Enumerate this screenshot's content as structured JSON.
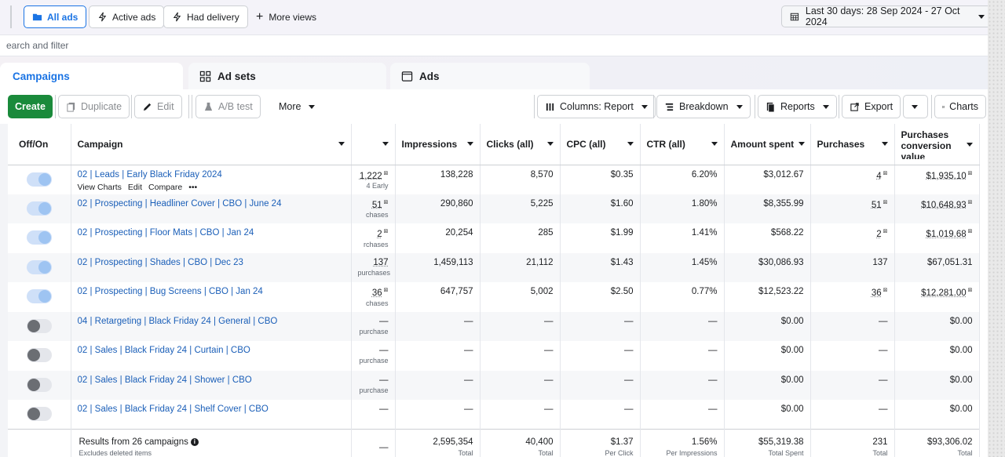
{
  "views": {
    "all_ads": "All ads",
    "active_ads": "Active ads",
    "had_delivery": "Had delivery",
    "more_views": "More views",
    "date_range": "Last 30 days: 28 Sep 2024 - 27 Oct 2024"
  },
  "search": {
    "placeholder": "earch and filter"
  },
  "tabs": [
    {
      "label": "Campaigns"
    },
    {
      "label": "Ad sets"
    },
    {
      "label": "Ads"
    }
  ],
  "toolbar": {
    "create": "Create",
    "duplicate": "Duplicate",
    "edit": "Edit",
    "ab_test": "A/B test",
    "more": "More",
    "columns": "Columns: Report",
    "breakdown": "Breakdown",
    "reports": "Reports",
    "export": "Export",
    "charts": "Charts"
  },
  "table": {
    "headers": {
      "off_on": "Off/On",
      "campaign": "Campaign",
      "impressions": "Impressions",
      "clicks": "Clicks (all)",
      "cpc": "CPC (all)",
      "ctr": "CTR (all)",
      "amount_spent": "Amount spent",
      "purchases": "Purchases",
      "pcv": "Purchases conversion value"
    },
    "row_actions": {
      "view_charts": "View Charts",
      "edit": "Edit",
      "compare": "Compare",
      "more": "•••"
    },
    "rows": [
      {
        "on": true,
        "campaign": "02 | Leads | Early Black Friday 2024",
        "results": "1,222",
        "results_sub": "4 Early",
        "impressions": "138,228",
        "clicks": "8,570",
        "cpc": "$0.35",
        "ctr": "6.20%",
        "spent": "$3,012.67",
        "purchases": "4",
        "pcv": "$1,935.10"
      },
      {
        "on": true,
        "campaign": "02 | Prospecting | Headliner Cover | CBO | June 24",
        "results": "51",
        "results_sub": "chases",
        "impressions": "290,860",
        "clicks": "5,225",
        "cpc": "$1.60",
        "ctr": "1.80%",
        "spent": "$8,355.99",
        "purchases": "51",
        "pcv": "$10,648.93"
      },
      {
        "on": true,
        "campaign": "02 | Prospecting | Floor Mats | CBO | Jan 24",
        "results": "2",
        "results_sub": "rchases",
        "impressions": "20,254",
        "clicks": "285",
        "cpc": "$1.99",
        "ctr": "1.41%",
        "spent": "$568.22",
        "purchases": "2",
        "pcv": "$1,019.68"
      },
      {
        "on": true,
        "campaign": "02 | Prospecting | Shades | CBO | Dec 23",
        "results": "137",
        "results_sub": "purchases",
        "impressions": "1,459,113",
        "clicks": "21,112",
        "cpc": "$1.43",
        "ctr": "1.45%",
        "spent": "$30,086.93",
        "purchases": "137",
        "pcv": "$67,051.31"
      },
      {
        "on": true,
        "campaign": "02 | Prospecting | Bug Screens | CBO | Jan 24",
        "results": "36",
        "results_sub": "chases",
        "impressions": "647,757",
        "clicks": "5,002",
        "cpc": "$2.50",
        "ctr": "0.77%",
        "spent": "$12,523.22",
        "purchases": "36",
        "pcv": "$12,281.00"
      },
      {
        "on": false,
        "campaign": "04 | Retargeting | Black Friday 24 | General | CBO",
        "results": "—",
        "results_sub": "purchase",
        "impressions": "—",
        "clicks": "—",
        "cpc": "—",
        "ctr": "—",
        "spent": "$0.00",
        "purchases": "—",
        "pcv": "$0.00"
      },
      {
        "on": false,
        "campaign": "02 | Sales | Black Friday 24 | Curtain | CBO",
        "results": "—",
        "results_sub": "purchase",
        "impressions": "—",
        "clicks": "—",
        "cpc": "—",
        "ctr": "—",
        "spent": "$0.00",
        "purchases": "—",
        "pcv": "$0.00"
      },
      {
        "on": false,
        "campaign": "02 | Sales | Black Friday 24 | Shower | CBO",
        "results": "—",
        "results_sub": "purchase",
        "impressions": "—",
        "clicks": "—",
        "cpc": "—",
        "ctr": "—",
        "spent": "$0.00",
        "purchases": "—",
        "pcv": "$0.00"
      },
      {
        "on": false,
        "campaign": "02 | Sales | Black Friday 24 | Shelf Cover | CBO",
        "results": "—",
        "results_sub": "",
        "impressions": "—",
        "clicks": "—",
        "cpc": "—",
        "ctr": "—",
        "spent": "$0.00",
        "purchases": "—",
        "pcv": "$0.00"
      }
    ],
    "footer": {
      "summary": "Results from 26 campaigns",
      "note": "Excludes deleted items",
      "results": "—",
      "impressions": "2,595,354",
      "impressions_lbl": "Total",
      "clicks": "40,400",
      "clicks_lbl": "Total",
      "cpc": "$1.37",
      "cpc_lbl": "Per Click",
      "ctr": "1.56%",
      "ctr_lbl": "Per Impressions",
      "spent": "$55,319.38",
      "spent_lbl": "Total Spent",
      "purchases": "231",
      "purchases_lbl": "Total",
      "pcv": "$93,306.02",
      "pcv_lbl": "Total"
    }
  }
}
